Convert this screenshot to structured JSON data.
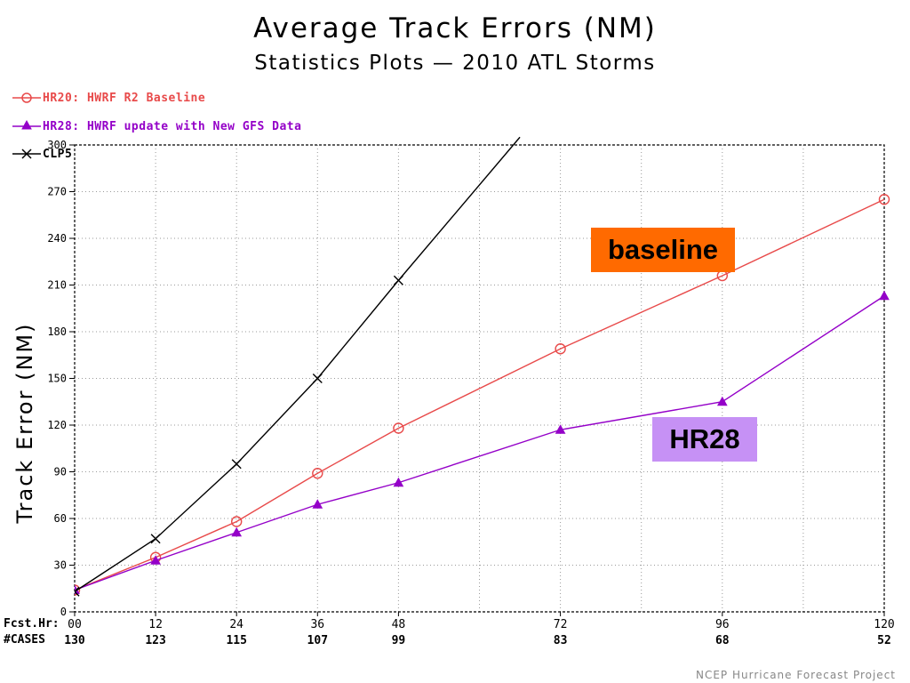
{
  "title": "Average Track Errors (NM)",
  "subtitle": "Statistics Plots — 2010 ATL Storms",
  "legend": [
    {
      "label": "HR20: HWRF R2 Baseline",
      "color": "#e84a4a",
      "marker": "circle"
    },
    {
      "label": "HR28: HWRF update with New GFS Data",
      "color": "#9400c8",
      "marker": "triangle"
    },
    {
      "label": "CLP5",
      "color": "#000000",
      "marker": "x"
    }
  ],
  "callouts": {
    "baseline": "baseline",
    "hr28": "HR28"
  },
  "footer": "NCEP Hurricane Forecast Project",
  "row_labels": {
    "fcst": "Fcst.Hr:",
    "cases": "#CASES"
  },
  "chart_data": {
    "type": "line",
    "title": "Average Track Errors (NM)",
    "subtitle": "Statistics Plots — 2010 ATL Storms",
    "ylabel": "Track Error (NM)",
    "xlabel": "Fcst.Hr:",
    "ylim": [
      0,
      300
    ],
    "xlim": [
      0,
      120
    ],
    "yticks": [
      0,
      30,
      60,
      90,
      120,
      150,
      180,
      210,
      240,
      270,
      300
    ],
    "x": [
      0,
      12,
      24,
      36,
      48,
      72,
      96,
      120
    ],
    "x_labels": [
      "00",
      "12",
      "24",
      "36",
      "48",
      "72",
      "96",
      "120"
    ],
    "cases": [
      "130",
      "123",
      "115",
      "107",
      "99",
      "83",
      "68",
      "52"
    ],
    "grid": true,
    "series": [
      {
        "name": "HR20: HWRF R2 Baseline",
        "color": "#e84a4a",
        "marker": "circle",
        "x": [
          0,
          12,
          24,
          36,
          48,
          72,
          96,
          120
        ],
        "values": [
          14,
          35,
          58,
          89,
          118,
          169,
          216,
          265
        ]
      },
      {
        "name": "HR28: HWRF update with New GFS Data",
        "color": "#9400c8",
        "marker": "triangle",
        "x": [
          0,
          12,
          24,
          36,
          48,
          72,
          96,
          120
        ],
        "values": [
          14,
          33,
          51,
          69,
          83,
          117,
          135,
          203
        ]
      },
      {
        "name": "CLP5",
        "color": "#000000",
        "marker": "x",
        "x": [
          0,
          12,
          24,
          36,
          48,
          66
        ],
        "values": [
          13,
          47,
          95,
          150,
          213,
          305
        ]
      }
    ]
  }
}
